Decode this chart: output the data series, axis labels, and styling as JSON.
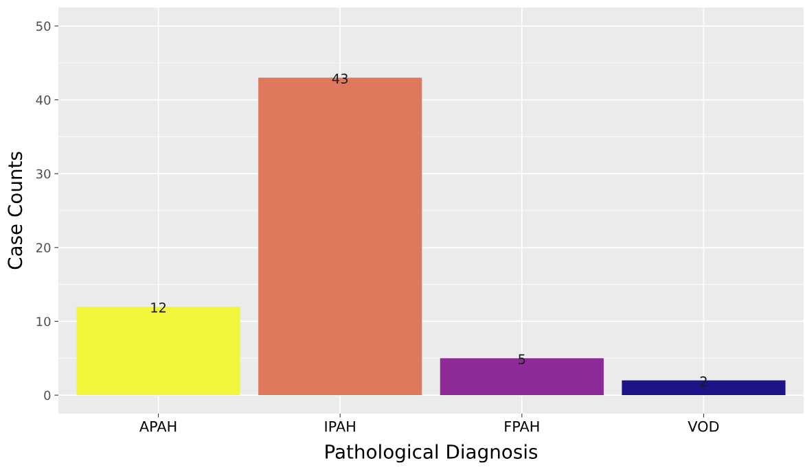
{
  "chart_data": {
    "type": "bar",
    "xlabel": "Pathological Diagnosis",
    "ylabel": "Case Counts",
    "categories": [
      "APAH",
      "IPAH",
      "FPAH",
      "VOD"
    ],
    "values": [
      12,
      43,
      5,
      2
    ],
    "colors": [
      "#f0f73a",
      "#de7a5b",
      "#8d2a97",
      "#1f1487"
    ],
    "ylim": [
      -2.5,
      52.5
    ],
    "yticks": [
      0,
      10,
      20,
      30,
      40,
      50
    ],
    "grid": true,
    "data_labels": true
  }
}
